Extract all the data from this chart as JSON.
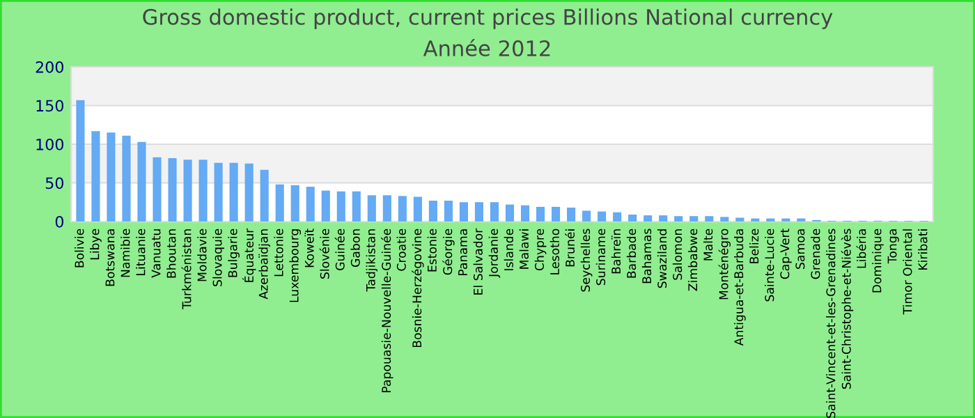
{
  "chart_data": {
    "type": "bar",
    "title": "Gross domestic product, current prices Billions National currency",
    "subtitle": "Année 2012",
    "categories": [
      "Bolivie",
      "Libye",
      "Botswana",
      "Namibie",
      "Lituanie",
      "Vanuatu",
      "Bhoutan",
      "Turkménistan",
      "Moldavie",
      "Slovaquie",
      "Bulgarie",
      "Équateur",
      "Azerbaïdjan",
      "Lettonie",
      "Luxembourg",
      "Koweït",
      "Slovénie",
      "Guinée",
      "Gabon",
      "Tadjikistan",
      "Papouasie-Nouvelle-Guinée",
      "Croatie",
      "Bosnie-Herzégovine",
      "Estonie",
      "Géorgie",
      "Panama",
      "El Salvador",
      "Jordanie",
      "Islande",
      "Malawi",
      "Chypre",
      "Lesotho",
      "Brunéi",
      "Seychelles",
      "Suriname",
      "Bahreïn",
      "Barbade",
      "Bahamas",
      "Swaziland",
      "Salomon",
      "Zimbabwe",
      "Malte",
      "Monténégro",
      "Antigua-et-Barbuda",
      "Belize",
      "Sainte-Lucie",
      "Cap-Vert",
      "Samoa",
      "Grenade",
      "Saint-Vincent-et-les-Grenadines",
      "Saint-Christophe-et-Niévès",
      "Libéria",
      "Dominique",
      "Tonga",
      "Timor Oriental",
      "Kiribati"
    ],
    "values": [
      157,
      117,
      115,
      111,
      103,
      83,
      82,
      80,
      80,
      76,
      76,
      75,
      67,
      48,
      47,
      45,
      40,
      39,
      39,
      34,
      34,
      33,
      32,
      27,
      27,
      25,
      25,
      25,
      22,
      21,
      19,
      19,
      18,
      14,
      13,
      12,
      9,
      8,
      8,
      7,
      7,
      7,
      6,
      5,
      4,
      4,
      4,
      4,
      2,
      1,
      1,
      1,
      1,
      1,
      1,
      1
    ],
    "color": "#64aaf4",
    "ylim": [
      0,
      200
    ],
    "yticks": [
      0,
      50,
      100,
      150,
      200
    ],
    "grid": "y"
  }
}
